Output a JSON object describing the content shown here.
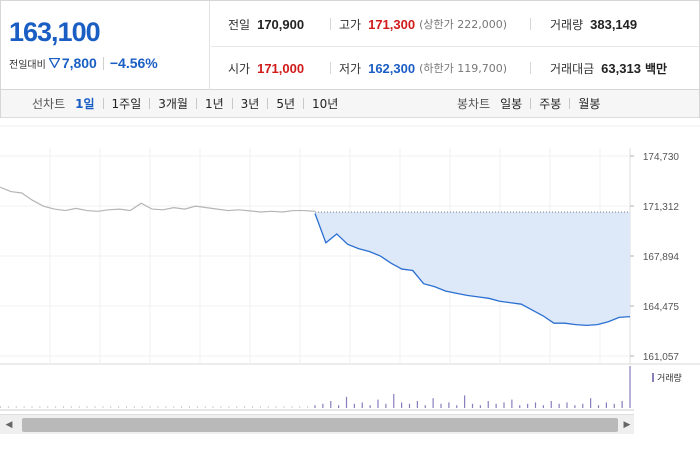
{
  "quote": {
    "price": "163,100",
    "change_label": "전일대비",
    "change_amount": "7,800",
    "change_percent": "−4.56%",
    "colors": {
      "up": "#d11b1b",
      "down": "#1a5ec4"
    },
    "stats": {
      "prev_close": {
        "label": "전일",
        "value": "170,900"
      },
      "high": {
        "label": "고가",
        "value": "171,300",
        "limit": "(상한가 222,000)"
      },
      "volume": {
        "label": "거래량",
        "value": "383,149"
      },
      "open": {
        "label": "시가",
        "value": "171,000"
      },
      "low": {
        "label": "저가",
        "value": "162,300",
        "limit": "(하한가 119,700)"
      },
      "trade_value": {
        "label": "거래대금",
        "value": "63,313",
        "unit": "백만"
      }
    }
  },
  "toolbar": {
    "line_chart_label": "선차트",
    "periods": [
      "1일",
      "1주일",
      "3개월",
      "1년",
      "3년",
      "5년",
      "10년"
    ],
    "active_period": "1일",
    "candle_chart_label": "봉차트",
    "candle_periods": [
      "일봉",
      "주봉",
      "월봉"
    ]
  },
  "chart_data": {
    "type": "line",
    "y_ticks": [
      "174,730",
      "171,312",
      "167,894",
      "164,475",
      "161,057"
    ],
    "ylim": [
      161057,
      174730
    ],
    "previous_close": 170900,
    "previous_day_series": {
      "color": "#b5b5b5",
      "x_fraction_range": [
        0,
        0.5
      ],
      "values": [
        172600,
        172300,
        172200,
        171700,
        171300,
        171100,
        171000,
        171150,
        171000,
        170950,
        171050,
        171100,
        171000,
        171500,
        171100,
        171050,
        171200,
        171100,
        171300,
        171200,
        171100,
        171000,
        171050,
        170980,
        170900,
        170950,
        170900,
        171000,
        171000,
        170950
      ]
    },
    "today_series": {
      "color": "#2a6fd1",
      "fill_color": "#dde9f8",
      "x_fraction_range": [
        0.5,
        1.0
      ],
      "values": [
        170800,
        168800,
        169400,
        168700,
        168400,
        168200,
        167900,
        167400,
        167000,
        166900,
        166000,
        165800,
        165500,
        165350,
        165200,
        165100,
        165000,
        164800,
        164700,
        164600,
        164200,
        163800,
        163300,
        163300,
        163200,
        163150,
        163200,
        163400,
        163700,
        163750
      ]
    },
    "volume": {
      "legend": "거래량",
      "color": "#8a7dbb",
      "values": [
        2,
        3,
        5,
        2,
        8,
        3,
        4,
        2,
        6,
        3,
        10,
        4,
        3,
        5,
        2,
        7,
        3,
        4,
        2,
        9,
        3,
        2,
        5,
        3,
        4,
        6,
        2,
        3,
        4,
        2,
        5,
        3,
        4,
        2,
        3,
        7,
        2,
        4,
        3,
        5,
        30
      ]
    }
  },
  "scrollbar": {
    "left_arrow": "◀",
    "right_arrow": "▶"
  }
}
